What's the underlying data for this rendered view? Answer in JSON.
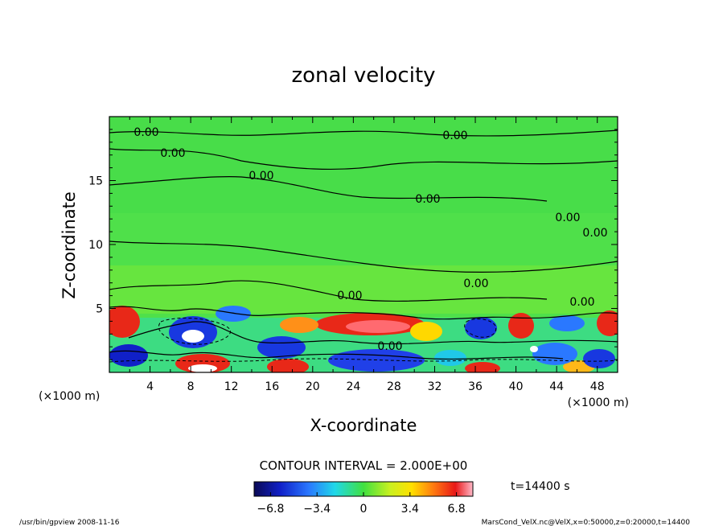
{
  "chart_data": {
    "type": "heatmap",
    "title": "zonal velocity",
    "xlabel": "X-coordinate",
    "ylabel": "Z-coordinate",
    "x_unit_left": "(×1000 m)",
    "x_unit_right": "(×1000 m)",
    "y_unit": "(×1000 m)",
    "xlim": [
      0,
      50
    ],
    "ylim": [
      0,
      20
    ],
    "x_ticks": [
      4,
      8,
      12,
      16,
      20,
      24,
      28,
      32,
      36,
      40,
      44,
      48
    ],
    "y_ticks": [
      5,
      10,
      15
    ],
    "contour_interval_text": "CONTOUR INTERVAL = 2.000E+00",
    "time_label": "t=14400 s",
    "contour_labels": [
      "0.00",
      "0.00",
      "0.00",
      "0.00",
      "0.00",
      "0.00",
      "0.00",
      "0.00",
      "0.00",
      "0.00",
      "0.00"
    ],
    "colorbar": {
      "min": -8,
      "max": 8,
      "tick_values": [
        -6.8,
        -3.4,
        0,
        3.4,
        6.8
      ],
      "tick_labels": [
        "−6.8",
        "−3.4",
        "0",
        "3.4",
        "6.8"
      ]
    },
    "footer_left": "/usr/bin/gpview   2008-11-16",
    "footer_right": "MarsCond_VelX.nc@VelX,x=0:50000,z=0:20000,t=14400"
  }
}
